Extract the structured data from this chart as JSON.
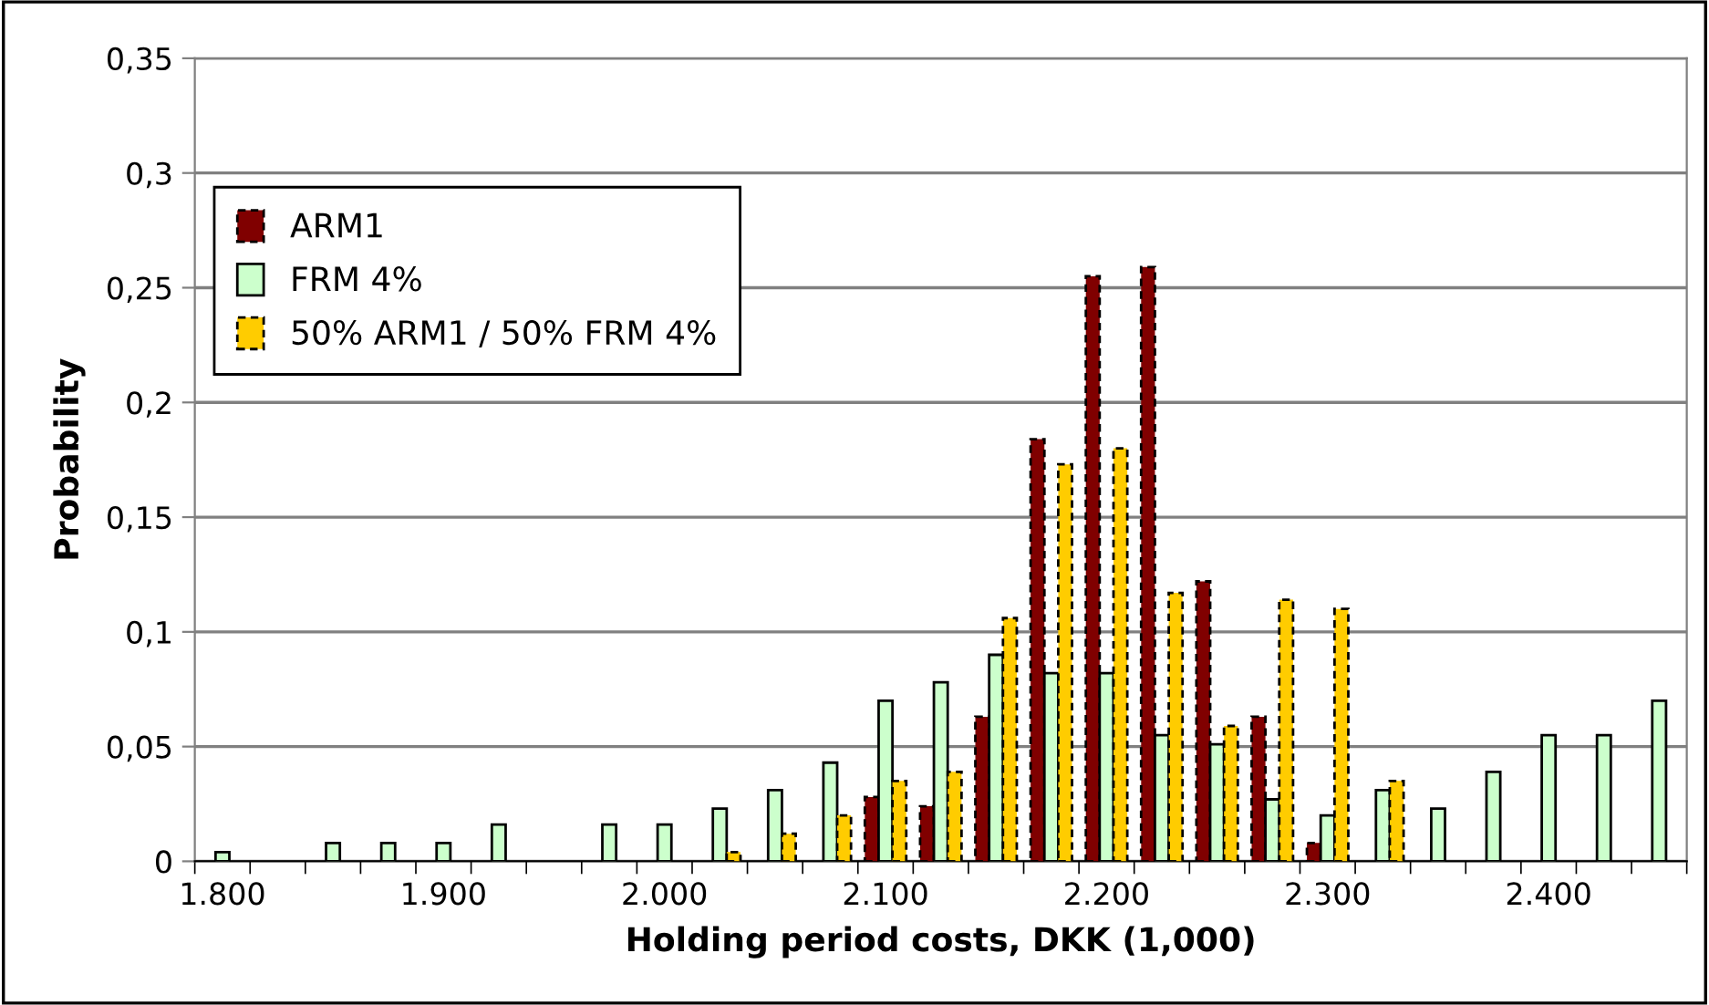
{
  "chart_data": {
    "type": "bar",
    "xlabel": "Holding period costs, DKK (1,000)",
    "ylabel": "Probability",
    "categories": [
      "1.800",
      null,
      null,
      null,
      "1.900",
      null,
      null,
      null,
      "2.000",
      null,
      null,
      null,
      "2.100",
      null,
      null,
      null,
      "2.200",
      null,
      null,
      null,
      "2.300",
      null,
      null,
      null,
      "2.400",
      null,
      null
    ],
    "series": [
      {
        "name": "ARM1",
        "color": "#800000",
        "line_style": "dashed",
        "values": [
          null,
          null,
          null,
          null,
          null,
          null,
          null,
          null,
          null,
          null,
          null,
          null,
          0.028,
          0.024,
          0.063,
          0.184,
          0.255,
          0.259,
          0.122,
          0.063,
          0.008,
          null,
          null,
          null,
          null,
          null,
          null
        ]
      },
      {
        "name": "FRM 4%",
        "color": "#ccffcc",
        "line_style": "solid",
        "values": [
          0.004,
          null,
          0.008,
          0.008,
          0.008,
          0.016,
          null,
          0.016,
          0.016,
          0.023,
          0.031,
          0.043,
          0.07,
          0.078,
          0.09,
          0.082,
          0.082,
          0.055,
          0.051,
          0.027,
          0.02,
          0.031,
          0.023,
          0.039,
          0.055,
          0.055,
          0.07
        ]
      },
      {
        "name": "50% ARM1 / 50% FRM 4%",
        "color": "#ffcc00",
        "line_style": "dashed",
        "values": [
          null,
          null,
          null,
          null,
          null,
          null,
          null,
          null,
          null,
          0.004,
          0.012,
          0.02,
          0.035,
          0.039,
          0.106,
          0.173,
          0.18,
          0.117,
          0.059,
          0.114,
          0.11,
          0.035,
          null,
          null,
          null,
          null,
          null
        ]
      }
    ],
    "ylim": [
      0,
      0.35
    ],
    "yticks": [
      {
        "value": 0,
        "label": "0"
      },
      {
        "value": 0.05,
        "label": "0,05"
      },
      {
        "value": 0.1,
        "label": "0,1"
      },
      {
        "value": 0.15,
        "label": "0,15"
      },
      {
        "value": 0.2,
        "label": "0,2"
      },
      {
        "value": 0.25,
        "label": "0,25"
      },
      {
        "value": 0.3,
        "label": "0,3"
      },
      {
        "value": 0.35,
        "label": "0,35"
      }
    ],
    "grid": "y",
    "legend": "top left"
  }
}
